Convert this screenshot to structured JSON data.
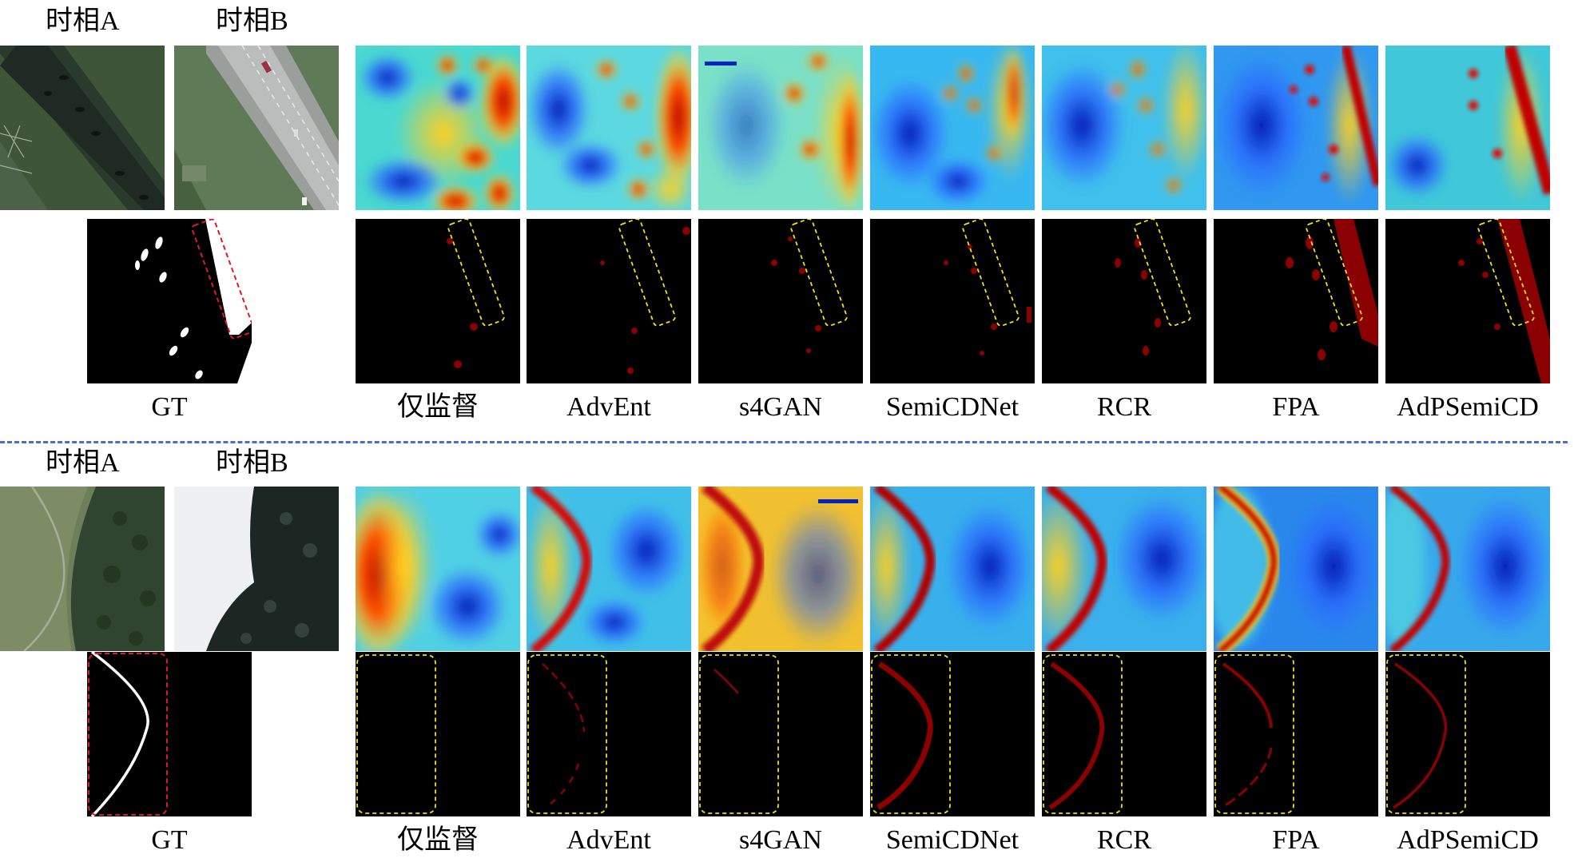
{
  "labels": {
    "time_a": "时相A",
    "time_b": "时相B",
    "gt": "GT"
  },
  "methods": [
    "仅监督",
    "AdvEnt",
    "s4GAN",
    "SemiCDNet",
    "RCR",
    "FPA",
    "AdPSemiCD"
  ],
  "colors": {
    "separator": "#4a6fc9",
    "gt_box": "#e0182a",
    "highlight_box": "#f0e020",
    "change_red": "#8b0000"
  }
}
